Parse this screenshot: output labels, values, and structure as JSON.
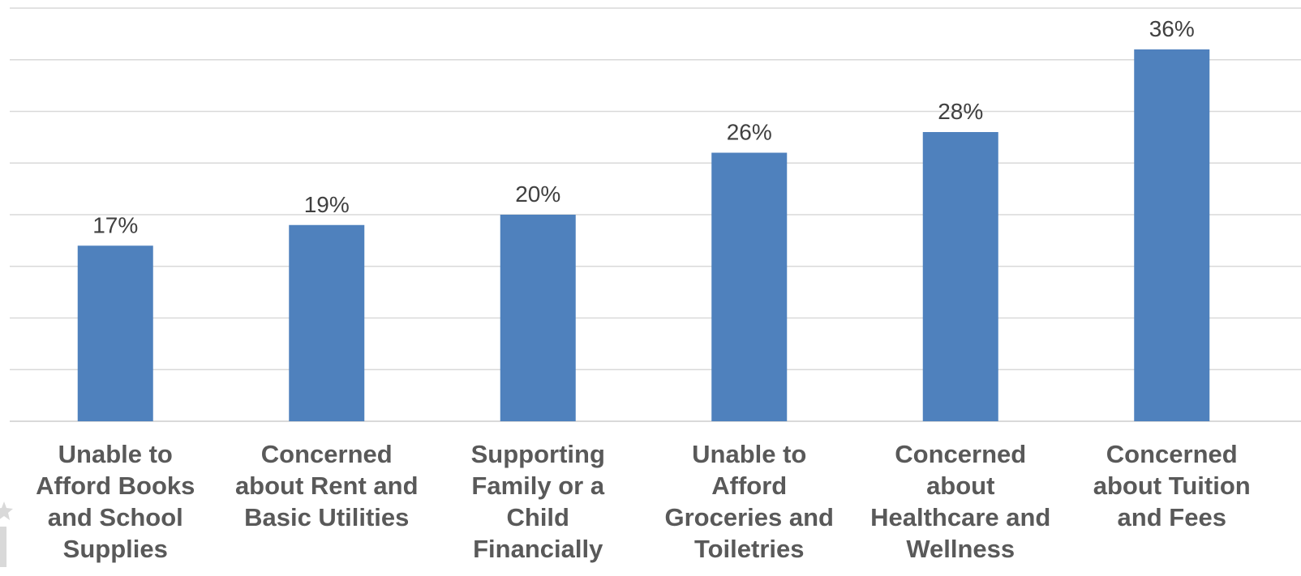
{
  "chart_data": {
    "type": "bar",
    "categories": [
      "Unable to Afford Books and School Supplies",
      "Concerned about Rent and Basic Utilities",
      "Supporting Family or a Child Financially",
      "Unable to Afford Groceries and Toiletries",
      "Concerned about Healthcare and Wellness",
      "Concerned about Tuition and Fees"
    ],
    "category_lines": [
      [
        "Unable to",
        "Afford Books",
        "and School",
        "Supplies"
      ],
      [
        "Concerned",
        "about Rent and",
        "Basic Utilities"
      ],
      [
        "Supporting",
        "Family or a",
        "Child",
        "Financially"
      ],
      [
        "Unable to",
        "Afford",
        "Groceries and",
        "Toiletries"
      ],
      [
        "Concerned",
        "about",
        "Healthcare and",
        "Wellness"
      ],
      [
        "Concerned",
        "about Tuition",
        "and Fees"
      ]
    ],
    "values": [
      17,
      19,
      20,
      26,
      28,
      36
    ],
    "data_labels": [
      "17%",
      "19%",
      "20%",
      "26%",
      "28%",
      "36%"
    ],
    "ylim": [
      0,
      40
    ],
    "y_gridlines": [
      0,
      5,
      10,
      15,
      20,
      25,
      30,
      35,
      40
    ],
    "grid": true,
    "title": "",
    "xlabel": "",
    "ylabel": "",
    "colors": {
      "bar": "#4f81bd",
      "gridline": "#d9d9d9",
      "axis": "#d9d9d9",
      "data_label": "#404040",
      "category_label": "#595959"
    }
  }
}
